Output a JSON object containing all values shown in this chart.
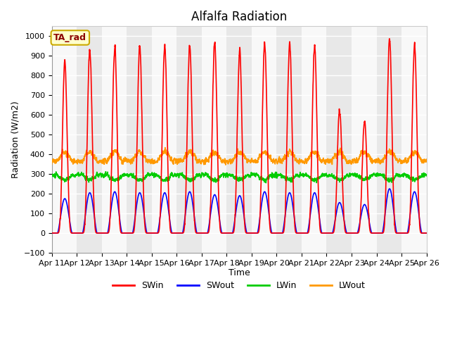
{
  "title": "Alfalfa Radiation",
  "xlabel": "Time",
  "ylabel": "Radiation (W/m2)",
  "ylim": [
    -100,
    1050
  ],
  "n_days": 15,
  "x_tick_labels": [
    "Apr 11",
    "Apr 12",
    "Apr 13",
    "Apr 14",
    "Apr 15",
    "Apr 16",
    "Apr 17",
    "Apr 18",
    "Apr 19",
    "Apr 20",
    "Apr 21",
    "Apr 22",
    "Apr 23",
    "Apr 24",
    "Apr 25",
    "Apr 26"
  ],
  "legend_label": "TA_rad",
  "series_labels": [
    "SWin",
    "SWout",
    "LWin",
    "LWout"
  ],
  "series_colors": [
    "#ff0000",
    "#0000ff",
    "#00cc00",
    "#ff9900"
  ],
  "line_width": 1.2,
  "background_gray": "#e8e8e8",
  "background_white": "#f8f8f8",
  "yticks": [
    -100,
    0,
    100,
    200,
    300,
    400,
    500,
    600,
    700,
    800,
    900,
    1000
  ],
  "grid_color": "#ffffff",
  "title_fontsize": 12,
  "axis_fontsize": 9,
  "tick_fontsize": 8,
  "legend_box_facecolor": "#ffffcc",
  "legend_box_edgecolor": "#ccaa00",
  "legend_text_color": "#8B0000",
  "swin_day_peaks": [
    870,
    935,
    950,
    945,
    950,
    955,
    975,
    920,
    965,
    960,
    950,
    630,
    575,
    990,
    950
  ],
  "swout_day_peaks": [
    175,
    205,
    210,
    205,
    205,
    210,
    195,
    190,
    210,
    205,
    205,
    155,
    145,
    225,
    210
  ],
  "lwin_base": 295,
  "lwout_base": 365,
  "lwin_amplitude": 25,
  "lwout_amplitude": 45,
  "sunrise_hour": 5.5,
  "sunset_hour": 19.5,
  "sw_sharpness": 4.0
}
